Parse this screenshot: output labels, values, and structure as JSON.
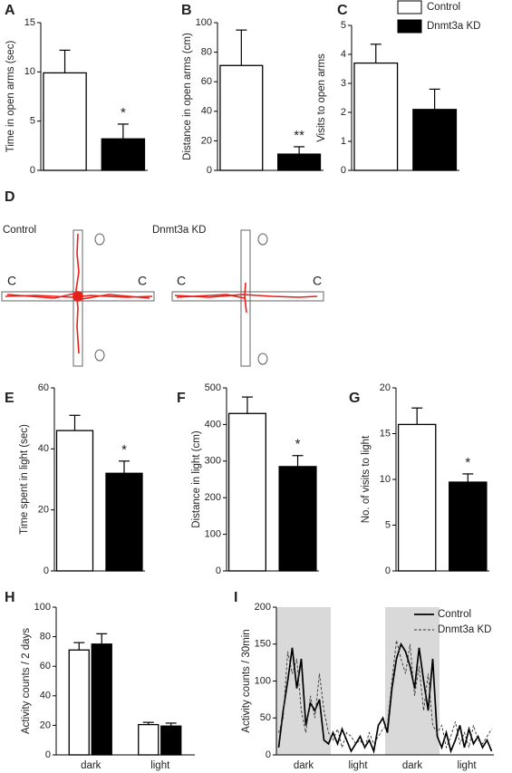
{
  "chart_data": [
    {
      "type": "bar",
      "panel": "A",
      "ylabel": "Time in open arms (sec)",
      "ylim": [
        0,
        15
      ],
      "yticks": [
        0,
        5,
        10,
        15
      ],
      "values": [
        9.9,
        3.2
      ],
      "errors": [
        2.3,
        1.5
      ],
      "colors": [
        "#ffffff",
        "#000000"
      ],
      "significance": [
        null,
        "*"
      ]
    },
    {
      "type": "bar",
      "panel": "B",
      "ylabel": "Distance in open arms (cm)",
      "ylim": [
        0,
        100
      ],
      "yticks": [
        0,
        20,
        40,
        60,
        80,
        100
      ],
      "values": [
        71,
        11
      ],
      "errors": [
        24,
        5
      ],
      "colors": [
        "#ffffff",
        "#000000"
      ],
      "significance": [
        null,
        "**"
      ]
    },
    {
      "type": "bar",
      "panel": "C",
      "ylabel": "Visits to open arms",
      "ylim": [
        0,
        5
      ],
      "yticks": [
        0,
        1,
        2,
        3,
        4,
        5
      ],
      "values": [
        3.7,
        2.1
      ],
      "errors": [
        0.65,
        0.7
      ],
      "colors": [
        "#ffffff",
        "#000000"
      ],
      "significance": [
        null,
        null
      ],
      "legend": [
        {
          "name": "Control",
          "color": "#ffffff"
        },
        {
          "name": "Dnmt3a KD",
          "color": "#000000"
        }
      ],
      "legend_position": "top-right"
    },
    {
      "type": "bar",
      "panel": "E",
      "ylabel": "Time spent in light (sec)",
      "ylim": [
        0,
        60
      ],
      "yticks": [
        0,
        20,
        40,
        60
      ],
      "values": [
        46,
        32
      ],
      "errors": [
        5,
        4
      ],
      "colors": [
        "#ffffff",
        "#000000"
      ],
      "significance": [
        null,
        "*"
      ]
    },
    {
      "type": "bar",
      "panel": "F",
      "ylabel": "Distance in light (cm)",
      "ylim": [
        0,
        500
      ],
      "yticks": [
        0,
        100,
        200,
        300,
        400,
        500
      ],
      "values": [
        430,
        285
      ],
      "errors": [
        45,
        30
      ],
      "colors": [
        "#ffffff",
        "#000000"
      ],
      "significance": [
        null,
        "*"
      ]
    },
    {
      "type": "bar",
      "panel": "G",
      "ylabel": "No. of visits to light",
      "ylim": [
        0,
        20
      ],
      "yticks": [
        0,
        5,
        10,
        15,
        20
      ],
      "values": [
        16,
        9.7
      ],
      "errors": [
        1.8,
        0.9
      ],
      "colors": [
        "#ffffff",
        "#000000"
      ],
      "significance": [
        null,
        "*"
      ]
    },
    {
      "type": "grouped_bar",
      "panel": "H",
      "ylabel": "Activity counts / 2 days",
      "ylim": [
        0,
        100
      ],
      "yticks": [
        0,
        20,
        40,
        60,
        80,
        100
      ],
      "categories": [
        "dark",
        "light"
      ],
      "series": [
        {
          "color": "#ffffff",
          "values": [
            71,
            20.5
          ],
          "errors": [
            5,
            1.5
          ]
        },
        {
          "color": "#000000",
          "values": [
            75,
            19.5
          ],
          "errors": [
            7,
            2
          ]
        }
      ]
    },
    {
      "type": "line",
      "panel": "I",
      "ylabel": "Activity counts / 30min",
      "ylim": [
        0,
        200
      ],
      "yticks": [
        0,
        50,
        100,
        150,
        200
      ],
      "phases": [
        {
          "label": "dark",
          "shaded": true
        },
        {
          "label": "light",
          "shaded": false
        },
        {
          "label": "dark",
          "shaded": true
        },
        {
          "label": "light",
          "shaded": false
        }
      ],
      "legend_position": "top-right",
      "series": [
        {
          "name": "Control",
          "color": "#000000",
          "dash": "solid",
          "values": [
            10,
            60,
            100,
            145,
            90,
            130,
            40,
            70,
            60,
            75,
            20,
            15,
            30,
            15,
            35,
            20,
            5,
            15,
            25,
            10,
            20,
            5,
            40,
            50,
            30,
            90,
            130,
            150,
            140,
            120,
            90,
            145,
            100,
            60,
            130,
            25,
            10,
            30,
            5,
            20,
            40,
            10,
            35,
            15,
            25,
            10,
            20,
            5
          ]
        },
        {
          "name": "Dnmt3a KD",
          "color": "#333333",
          "dash": "dashed",
          "values": [
            30,
            50,
            140,
            110,
            130,
            60,
            30,
            80,
            50,
            110,
            60,
            30,
            20,
            35,
            10,
            30,
            25,
            15,
            20,
            10,
            30,
            15,
            25,
            35,
            40,
            100,
            155,
            130,
            110,
            150,
            80,
            120,
            60,
            110,
            40,
            30,
            40,
            10,
            25,
            45,
            15,
            30,
            10,
            40,
            20,
            15,
            25,
            35
          ]
        }
      ]
    }
  ],
  "maze": {
    "panel": "D",
    "groups": [
      "Control",
      "Dnmt3a KD"
    ],
    "closed_arm_labels": [
      "C",
      "C",
      "C",
      "C"
    ]
  }
}
